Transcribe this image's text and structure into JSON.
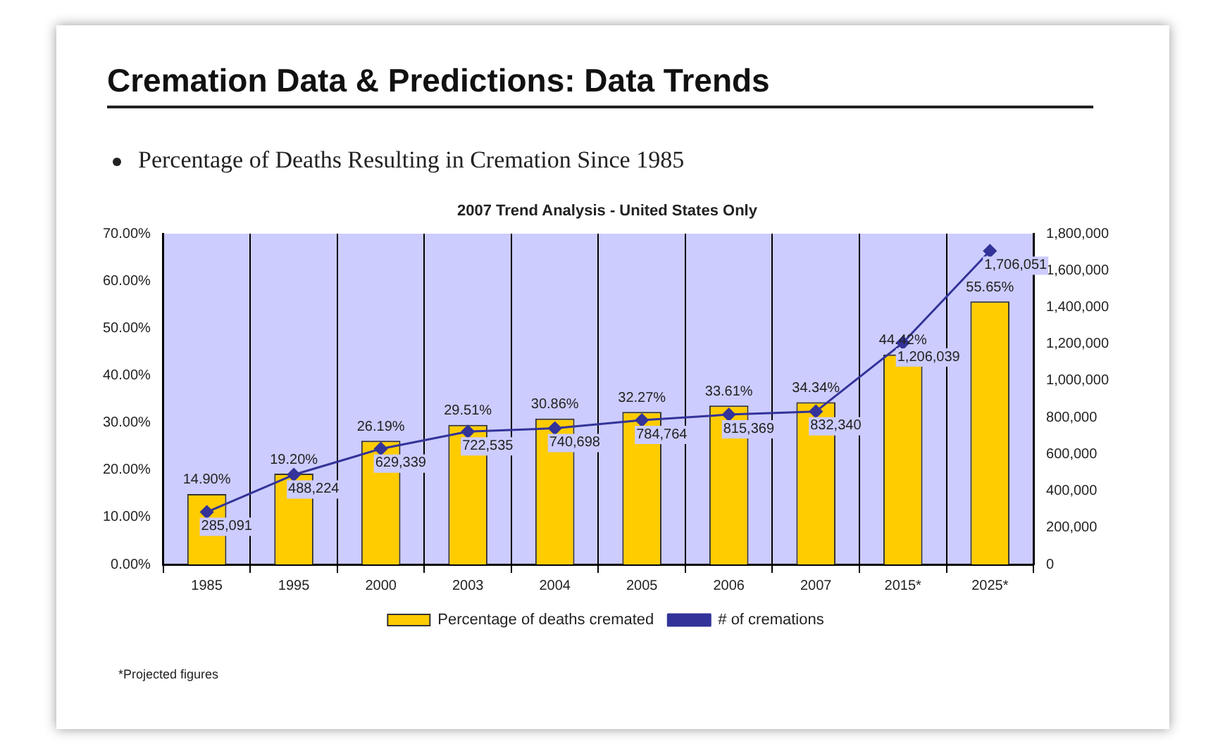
{
  "chart_data": {
    "type": "bar",
    "title": "Cremation Data & Predictions: Data Trends",
    "subtitle": "Percentage of Deaths Resulting in Cremation Since 1985",
    "annotations": [
      "2007 Trend Analysis - United States Only",
      "*Projected figures"
    ],
    "categories": [
      "1985",
      "1995",
      "2000",
      "2003",
      "2004",
      "2005",
      "2006",
      "2007",
      "2015*",
      "2025*"
    ],
    "series": [
      {
        "name": "Percentage of deaths cremated",
        "color": "#ffcc00",
        "values": [
          14.9,
          19.2,
          26.19,
          29.51,
          30.86,
          32.27,
          33.61,
          34.34,
          44.42,
          55.65
        ],
        "value_labels": [
          "14.90%",
          "19.20%",
          "26.19%",
          "29.51%",
          "30.86%",
          "32.27%",
          "33.61%",
          "34.34%",
          "44.42%",
          "55.65%"
        ]
      },
      {
        "name": "# of cremations",
        "type": "line",
        "axis": "y2",
        "color": "#333399",
        "marker": "diamond",
        "values": [
          285091,
          488224,
          629339,
          722535,
          740698,
          784764,
          815369,
          832340,
          1206039,
          1706051
        ],
        "value_labels": [
          "285,091",
          "488,224",
          "629,339",
          "722,535",
          "740,698",
          "784,764",
          "815,369",
          "832,340",
          "1,206,039",
          "1,706,051"
        ]
      }
    ],
    "ylim": [
      0,
      70
    ],
    "yticks": [
      {
        "value": 0,
        "label": "0.00%"
      },
      {
        "value": 10,
        "label": "10.00%"
      },
      {
        "value": 20,
        "label": "20.00%"
      },
      {
        "value": 30,
        "label": "30.00%"
      },
      {
        "value": 40,
        "label": "40.00%"
      },
      {
        "value": 50,
        "label": "50.00%"
      },
      {
        "value": 60,
        "label": "60.00%"
      },
      {
        "value": 70,
        "label": "70.00%"
      }
    ],
    "y2lim": [
      0,
      1800000
    ],
    "y2ticks": [
      0,
      {
        "value": 200000,
        "label": "200,000"
      },
      {
        "value": 400000,
        "label": "400,000"
      },
      {
        "value": 600000,
        "label": "600,000"
      },
      {
        "value": 800000,
        "label": "800,000"
      },
      {
        "value": 1000000,
        "label": "1,000,000"
      },
      {
        "value": 1200000,
        "label": "1,200,000"
      },
      {
        "value": 1400000,
        "label": "1,400,000"
      },
      {
        "value": 1600000,
        "label": "1,600,000"
      },
      {
        "value": 1800000,
        "label": "1,800,000"
      }
    ],
    "grid": "x",
    "legend": "bottom"
  }
}
